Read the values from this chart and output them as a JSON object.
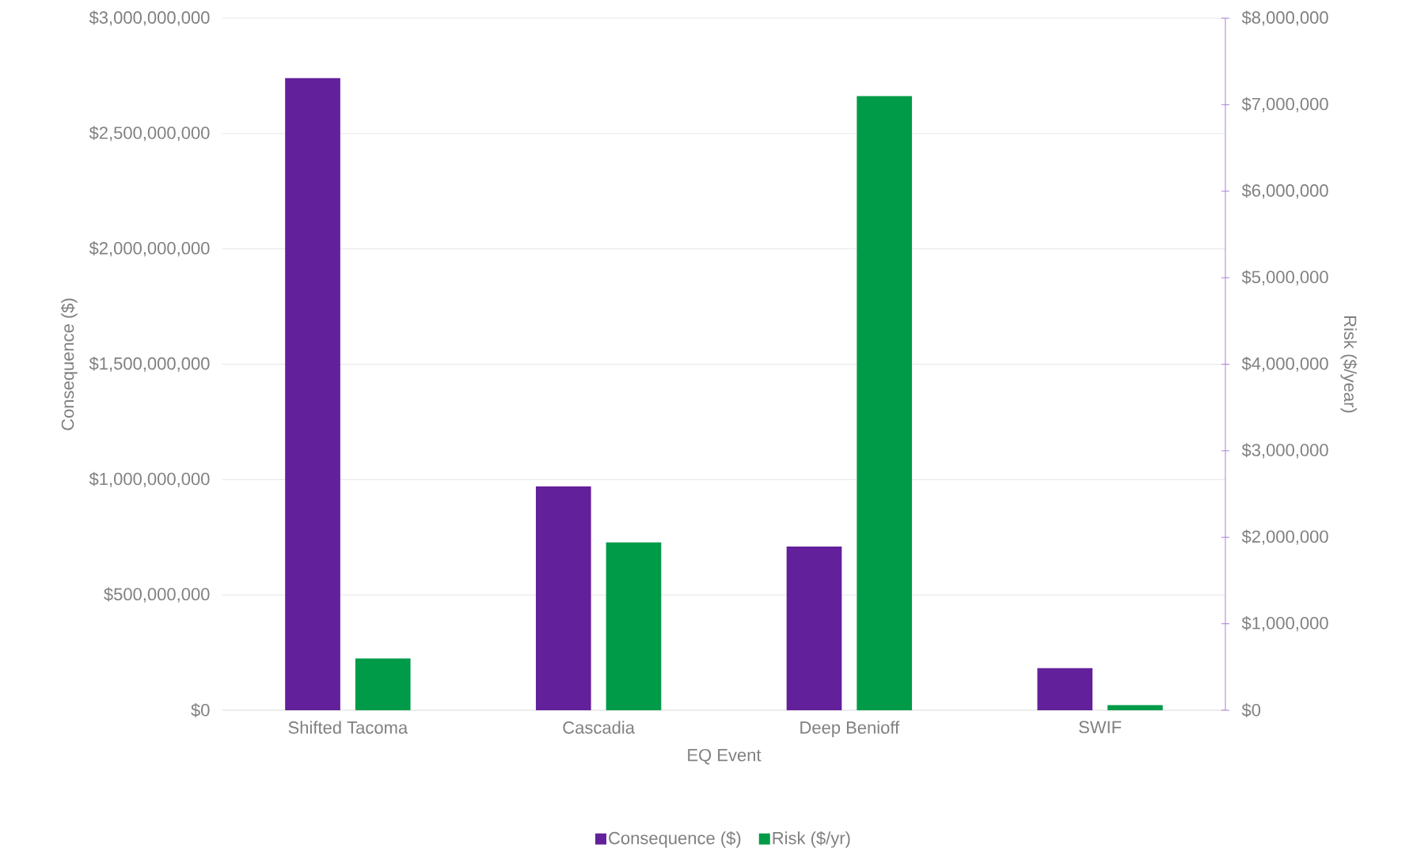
{
  "chart_data": {
    "type": "bar",
    "xlabel": "EQ Event",
    "ylabel": "Consequence ($)",
    "y2label": "Risk ($/year)",
    "categories": [
      "Shifted Tacoma",
      "Cascadia",
      "Deep Benioff",
      "SWIF"
    ],
    "series": [
      {
        "name": "Consequence ($)",
        "color": "#63209b",
        "values": [
          2740000000,
          970000000,
          710000000,
          183000000
        ]
      },
      {
        "name": "Risk ($/yr)",
        "color": "#009b48",
        "axis": "y2",
        "values": [
          600000,
          1940000,
          7100000,
          60000
        ]
      }
    ],
    "ylim": [
      0,
      3000000000
    ],
    "yticks": [
      {
        "value": 0,
        "label": "$0"
      },
      {
        "value": 500000000,
        "label": "$500,000,000"
      },
      {
        "value": 1000000000,
        "label": "$1,000,000,000"
      },
      {
        "value": 1500000000,
        "label": "$1,500,000,000"
      },
      {
        "value": 2000000000,
        "label": "$2,000,000,000"
      },
      {
        "value": 2500000000,
        "label": "$2,500,000,000"
      },
      {
        "value": 3000000000,
        "label": "$3,000,000,000"
      }
    ],
    "y2lim": [
      0,
      8000000
    ],
    "y2ticks": [
      {
        "value": 0,
        "label": "$0"
      },
      {
        "value": 1000000,
        "label": "$1,000,000"
      },
      {
        "value": 2000000,
        "label": "$2,000,000"
      },
      {
        "value": 3000000,
        "label": "$3,000,000"
      },
      {
        "value": 4000000,
        "label": "$4,000,000"
      },
      {
        "value": 5000000,
        "label": "$5,000,000"
      },
      {
        "value": 6000000,
        "label": "$6,000,000"
      },
      {
        "value": 7000000,
        "label": "$7,000,000"
      },
      {
        "value": 8000000,
        "label": "$8,000,000"
      }
    ],
    "grid": "y",
    "legend": "bottom"
  }
}
